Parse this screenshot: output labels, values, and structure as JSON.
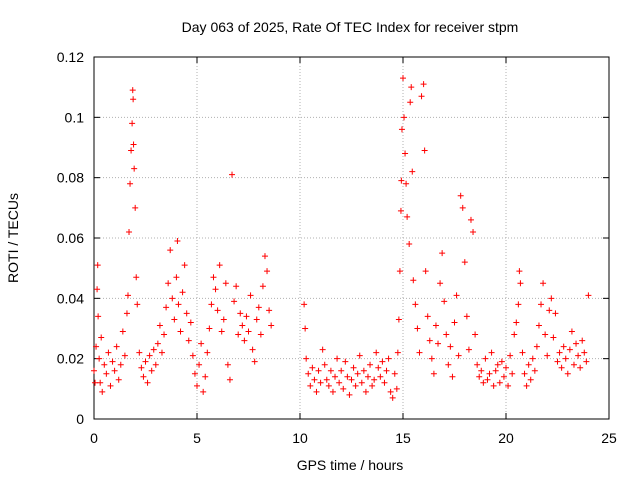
{
  "chart_data": {
    "type": "scatter",
    "title": "Day 063 of 2025, Rate Of TEC Index for receiver stpm",
    "xlabel": "GPS time / hours",
    "ylabel": "ROTI / TECUs",
    "xlim": [
      0,
      25
    ],
    "ylim": [
      0,
      0.12
    ],
    "xticks": [
      0,
      5,
      10,
      15,
      20,
      25
    ],
    "xtick_labels": [
      "0",
      "5",
      "10",
      "15",
      "20",
      "25"
    ],
    "yticks": [
      0,
      0.02,
      0.04,
      0.06,
      0.08,
      0.1,
      0.12
    ],
    "ytick_labels": [
      "0",
      "0.02",
      "0.04",
      "0.06",
      "0.08",
      "0.1",
      "0.12"
    ],
    "grid": true,
    "marker": "+",
    "colors": {
      "series": "#ff0000",
      "grid": "#b0b0b0",
      "axes": "#000000"
    },
    "series": [
      {
        "name": "ROTI",
        "points": [
          [
            0.0,
            0.016
          ],
          [
            0.05,
            0.012
          ],
          [
            0.1,
            0.024
          ],
          [
            0.15,
            0.043
          ],
          [
            0.18,
            0.051
          ],
          [
            0.2,
            0.034
          ],
          [
            0.25,
            0.02
          ],
          [
            0.3,
            0.012
          ],
          [
            0.35,
            0.027
          ],
          [
            0.4,
            0.009
          ],
          [
            0.5,
            0.018
          ],
          [
            0.6,
            0.015
          ],
          [
            0.7,
            0.022
          ],
          [
            0.8,
            0.011
          ],
          [
            0.9,
            0.019
          ],
          [
            1.0,
            0.016
          ],
          [
            1.1,
            0.024
          ],
          [
            1.2,
            0.013
          ],
          [
            1.3,
            0.018
          ],
          [
            1.4,
            0.029
          ],
          [
            1.5,
            0.021
          ],
          [
            1.6,
            0.035
          ],
          [
            1.65,
            0.041
          ],
          [
            1.7,
            0.062
          ],
          [
            1.75,
            0.078
          ],
          [
            1.8,
            0.089
          ],
          [
            1.85,
            0.098
          ],
          [
            1.88,
            0.109
          ],
          [
            1.9,
            0.106
          ],
          [
            1.92,
            0.091
          ],
          [
            1.95,
            0.083
          ],
          [
            2.0,
            0.07
          ],
          [
            2.05,
            0.047
          ],
          [
            2.1,
            0.038
          ],
          [
            2.2,
            0.022
          ],
          [
            2.3,
            0.017
          ],
          [
            2.4,
            0.014
          ],
          [
            2.5,
            0.019
          ],
          [
            2.6,
            0.012
          ],
          [
            2.7,
            0.021
          ],
          [
            2.8,
            0.016
          ],
          [
            2.9,
            0.023
          ],
          [
            3.0,
            0.018
          ],
          [
            3.1,
            0.025
          ],
          [
            3.2,
            0.031
          ],
          [
            3.3,
            0.022
          ],
          [
            3.4,
            0.028
          ],
          [
            3.5,
            0.037
          ],
          [
            3.6,
            0.045
          ],
          [
            3.7,
            0.056
          ],
          [
            3.8,
            0.04
          ],
          [
            3.9,
            0.033
          ],
          [
            4.0,
            0.047
          ],
          [
            4.05,
            0.059
          ],
          [
            4.1,
            0.038
          ],
          [
            4.2,
            0.029
          ],
          [
            4.3,
            0.042
          ],
          [
            4.4,
            0.051
          ],
          [
            4.5,
            0.035
          ],
          [
            4.6,
            0.026
          ],
          [
            4.7,
            0.032
          ],
          [
            4.8,
            0.021
          ],
          [
            4.9,
            0.015
          ],
          [
            5.0,
            0.011
          ],
          [
            5.1,
            0.018
          ],
          [
            5.2,
            0.025
          ],
          [
            5.3,
            0.009
          ],
          [
            5.4,
            0.014
          ],
          [
            5.5,
            0.022
          ],
          [
            5.6,
            0.03
          ],
          [
            5.7,
            0.038
          ],
          [
            5.8,
            0.047
          ],
          [
            5.9,
            0.043
          ],
          [
            6.0,
            0.036
          ],
          [
            6.1,
            0.051
          ],
          [
            6.2,
            0.029
          ],
          [
            6.3,
            0.033
          ],
          [
            6.4,
            0.045
          ],
          [
            6.5,
            0.018
          ],
          [
            6.6,
            0.013
          ],
          [
            6.7,
            0.081
          ],
          [
            6.8,
            0.039
          ],
          [
            6.9,
            0.044
          ],
          [
            7.0,
            0.028
          ],
          [
            7.1,
            0.035
          ],
          [
            7.2,
            0.031
          ],
          [
            7.3,
            0.026
          ],
          [
            7.4,
            0.034
          ],
          [
            7.5,
            0.029
          ],
          [
            7.6,
            0.041
          ],
          [
            7.7,
            0.023
          ],
          [
            7.8,
            0.019
          ],
          [
            7.9,
            0.033
          ],
          [
            8.0,
            0.037
          ],
          [
            8.1,
            0.028
          ],
          [
            8.2,
            0.044
          ],
          [
            8.3,
            0.054
          ],
          [
            8.4,
            0.049
          ],
          [
            8.5,
            0.036
          ],
          [
            8.6,
            0.031
          ],
          [
            10.2,
            0.038
          ],
          [
            10.25,
            0.03
          ],
          [
            10.3,
            0.02
          ],
          [
            10.4,
            0.015
          ],
          [
            10.5,
            0.011
          ],
          [
            10.6,
            0.017
          ],
          [
            10.7,
            0.013
          ],
          [
            10.8,
            0.009
          ],
          [
            10.9,
            0.016
          ],
          [
            11.0,
            0.012
          ],
          [
            11.1,
            0.023
          ],
          [
            11.2,
            0.018
          ],
          [
            11.3,
            0.013
          ],
          [
            11.4,
            0.011
          ],
          [
            11.5,
            0.016
          ],
          [
            11.6,
            0.009
          ],
          [
            11.7,
            0.014
          ],
          [
            11.8,
            0.02
          ],
          [
            11.9,
            0.012
          ],
          [
            12.0,
            0.016
          ],
          [
            12.1,
            0.01
          ],
          [
            12.2,
            0.019
          ],
          [
            12.3,
            0.014
          ],
          [
            12.4,
            0.008
          ],
          [
            12.5,
            0.013
          ],
          [
            12.6,
            0.017
          ],
          [
            12.7,
            0.011
          ],
          [
            12.8,
            0.015
          ],
          [
            12.9,
            0.021
          ],
          [
            13.0,
            0.012
          ],
          [
            13.1,
            0.016
          ],
          [
            13.2,
            0.009
          ],
          [
            13.3,
            0.014
          ],
          [
            13.4,
            0.018
          ],
          [
            13.5,
            0.011
          ],
          [
            13.6,
            0.013
          ],
          [
            13.7,
            0.022
          ],
          [
            13.8,
            0.017
          ],
          [
            13.9,
            0.014
          ],
          [
            14.0,
            0.019
          ],
          [
            14.1,
            0.012
          ],
          [
            14.2,
            0.016
          ],
          [
            14.3,
            0.02
          ],
          [
            14.4,
            0.009
          ],
          [
            14.5,
            0.007
          ],
          [
            14.6,
            0.015
          ],
          [
            14.7,
            0.01
          ],
          [
            14.75,
            0.022
          ],
          [
            14.8,
            0.033
          ],
          [
            14.85,
            0.049
          ],
          [
            14.9,
            0.069
          ],
          [
            14.92,
            0.079
          ],
          [
            14.95,
            0.096
          ],
          [
            15.0,
            0.113
          ],
          [
            15.05,
            0.1
          ],
          [
            15.1,
            0.088
          ],
          [
            15.15,
            0.078
          ],
          [
            15.2,
            0.067
          ],
          [
            15.3,
            0.058
          ],
          [
            15.35,
            0.105
          ],
          [
            15.4,
            0.11
          ],
          [
            15.45,
            0.082
          ],
          [
            15.5,
            0.046
          ],
          [
            15.6,
            0.038
          ],
          [
            15.7,
            0.03
          ],
          [
            15.8,
            0.022
          ],
          [
            15.9,
            0.107
          ],
          [
            16.0,
            0.111
          ],
          [
            16.05,
            0.089
          ],
          [
            16.1,
            0.049
          ],
          [
            16.2,
            0.034
          ],
          [
            16.3,
            0.026
          ],
          [
            16.4,
            0.02
          ],
          [
            16.5,
            0.015
          ],
          [
            16.6,
            0.031
          ],
          [
            16.7,
            0.025
          ],
          [
            16.8,
            0.045
          ],
          [
            16.9,
            0.055
          ],
          [
            17.0,
            0.039
          ],
          [
            17.1,
            0.028
          ],
          [
            17.2,
            0.018
          ],
          [
            17.3,
            0.024
          ],
          [
            17.4,
            0.014
          ],
          [
            17.5,
            0.032
          ],
          [
            17.6,
            0.041
          ],
          [
            17.7,
            0.021
          ],
          [
            17.8,
            0.074
          ],
          [
            17.9,
            0.07
          ],
          [
            18.0,
            0.052
          ],
          [
            18.1,
            0.034
          ],
          [
            18.2,
            0.023
          ],
          [
            18.3,
            0.066
          ],
          [
            18.4,
            0.062
          ],
          [
            18.5,
            0.028
          ],
          [
            18.6,
            0.018
          ],
          [
            18.7,
            0.014
          ],
          [
            18.8,
            0.016
          ],
          [
            18.9,
            0.012
          ],
          [
            19.0,
            0.02
          ],
          [
            19.1,
            0.013
          ],
          [
            19.2,
            0.015
          ],
          [
            19.3,
            0.022
          ],
          [
            19.4,
            0.011
          ],
          [
            19.5,
            0.016
          ],
          [
            19.6,
            0.018
          ],
          [
            19.7,
            0.012
          ],
          [
            19.8,
            0.019
          ],
          [
            19.9,
            0.014
          ],
          [
            20.0,
            0.017
          ],
          [
            20.1,
            0.011
          ],
          [
            20.2,
            0.021
          ],
          [
            20.3,
            0.015
          ],
          [
            20.4,
            0.028
          ],
          [
            20.5,
            0.032
          ],
          [
            20.6,
            0.038
          ],
          [
            20.65,
            0.049
          ],
          [
            20.7,
            0.045
          ],
          [
            20.8,
            0.022
          ],
          [
            20.9,
            0.015
          ],
          [
            21.0,
            0.011
          ],
          [
            21.1,
            0.018
          ],
          [
            21.2,
            0.013
          ],
          [
            21.3,
            0.02
          ],
          [
            21.4,
            0.016
          ],
          [
            21.5,
            0.024
          ],
          [
            21.6,
            0.031
          ],
          [
            21.7,
            0.038
          ],
          [
            21.8,
            0.045
          ],
          [
            21.9,
            0.028
          ],
          [
            22.0,
            0.021
          ],
          [
            22.1,
            0.036
          ],
          [
            22.2,
            0.04
          ],
          [
            22.3,
            0.027
          ],
          [
            22.4,
            0.035
          ],
          [
            22.5,
            0.019
          ],
          [
            22.6,
            0.022
          ],
          [
            22.7,
            0.017
          ],
          [
            22.8,
            0.024
          ],
          [
            22.9,
            0.02
          ],
          [
            23.0,
            0.015
          ],
          [
            23.1,
            0.023
          ],
          [
            23.2,
            0.029
          ],
          [
            23.3,
            0.018
          ],
          [
            23.4,
            0.025
          ],
          [
            23.5,
            0.021
          ],
          [
            23.6,
            0.017
          ],
          [
            23.7,
            0.026
          ],
          [
            23.8,
            0.022
          ],
          [
            23.9,
            0.019
          ],
          [
            24.0,
            0.041
          ]
        ]
      }
    ]
  }
}
